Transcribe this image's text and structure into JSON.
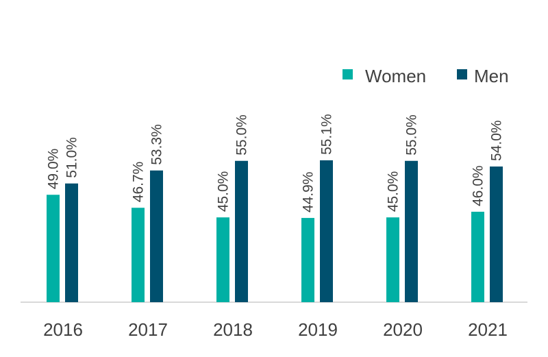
{
  "chart_data": {
    "type": "bar",
    "categories": [
      "2016",
      "2017",
      "2018",
      "2019",
      "2020",
      "2021"
    ],
    "series": [
      {
        "name": "Women",
        "color": "#00b0a4",
        "values": [
          49.0,
          46.7,
          45.0,
          44.9,
          45.0,
          46.0
        ],
        "labels": [
          "49.0%",
          "46.7%",
          "45.0%",
          "44.9%",
          "45.0%",
          "46.0%"
        ]
      },
      {
        "name": "Men",
        "color": "#00506e",
        "values": [
          51.0,
          53.3,
          55.0,
          55.1,
          55.0,
          54.0
        ],
        "labels": [
          "51.0%",
          "53.3%",
          "55.0%",
          "55.1%",
          "55.0%",
          "54.0%"
        ]
      }
    ],
    "legend_position": "top-right",
    "grid": false,
    "ylim": [
      30,
      58
    ],
    "axis_color": "#d9d9d9"
  }
}
